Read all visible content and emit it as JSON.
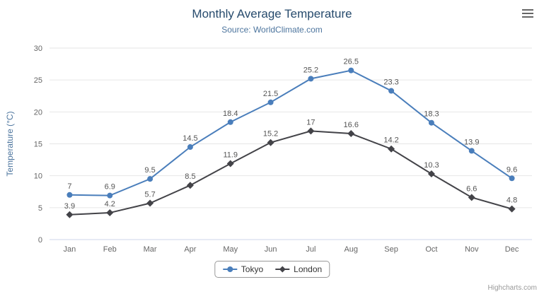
{
  "header": {
    "title": "Monthly Average Temperature",
    "subtitle": "Source: WorldClimate.com"
  },
  "menu": {
    "icon": "hamburger-menu"
  },
  "credits": {
    "label": "Highcharts.com"
  },
  "chart_data": {
    "type": "line",
    "title": "Monthly Average Temperature",
    "subtitle": "Source: WorldClimate.com",
    "categories": [
      "Jan",
      "Feb",
      "Mar",
      "Apr",
      "May",
      "Jun",
      "Jul",
      "Aug",
      "Sep",
      "Oct",
      "Nov",
      "Dec"
    ],
    "series": [
      {
        "name": "Tokyo",
        "color": "#4a7ebb",
        "marker": "circle",
        "values": [
          7,
          6.9,
          9.5,
          14.5,
          18.4,
          21.5,
          25.2,
          26.5,
          23.3,
          18.3,
          13.9,
          9.6
        ]
      },
      {
        "name": "London",
        "color": "#434348",
        "marker": "diamond",
        "values": [
          3.9,
          4.2,
          5.7,
          8.5,
          11.9,
          15.2,
          17,
          16.6,
          14.2,
          10.3,
          6.6,
          4.8
        ]
      }
    ],
    "xlabel": "",
    "ylabel": "Temperature (°C)",
    "ylim": [
      0,
      30
    ],
    "ytick_interval": 5,
    "grid": true,
    "legend_position": "bottom",
    "data_labels": true
  }
}
